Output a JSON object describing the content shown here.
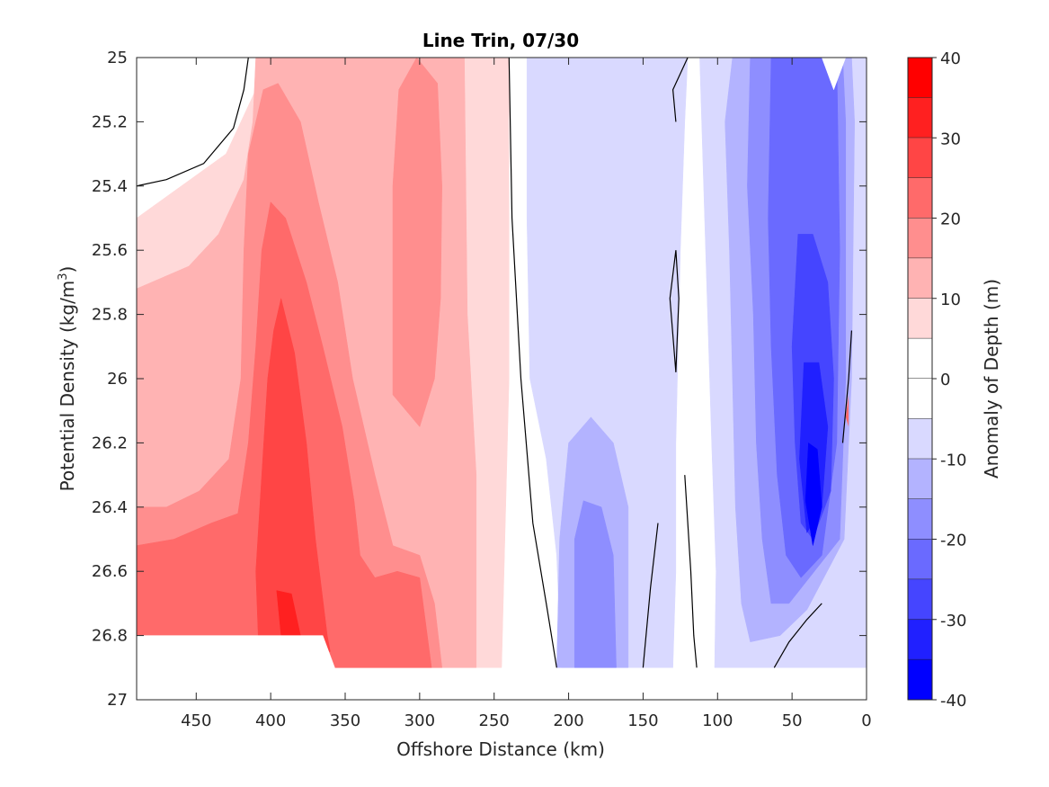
{
  "chart_data": {
    "type": "heatmap",
    "subtype": "filled-contour",
    "title": "Line Trin, 07/30",
    "xlabel": "Offshore Distance (km)",
    "ylabel_main": "Potential Density (kg/m",
    "ylabel_sup": "3",
    "ylabel_close": ")",
    "xlim": [
      490,
      0
    ],
    "ylim": [
      25,
      27
    ],
    "x_ticks": [
      450,
      400,
      350,
      300,
      250,
      200,
      150,
      100,
      50,
      0
    ],
    "x_tick_labels": [
      "450",
      "400",
      "350",
      "300",
      "250",
      "200",
      "150",
      "100",
      "50",
      "0"
    ],
    "y_ticks": [
      25,
      25.2,
      25.4,
      25.6,
      25.8,
      26,
      26.2,
      26.4,
      26.6,
      26.8,
      27
    ],
    "y_tick_labels": [
      "25",
      "25.2",
      "25.4",
      "25.6",
      "25.8",
      "26",
      "26.2",
      "26.4",
      "26.6",
      "26.8",
      "27"
    ],
    "colorbar": {
      "label": "Anomaly of Depth (m)",
      "clim": [
        -40,
        40
      ],
      "ticks": [
        40,
        30,
        20,
        10,
        0,
        -10,
        -20,
        -30,
        -40
      ],
      "tick_labels": [
        "40",
        "30",
        "20",
        "10",
        "0",
        "-10",
        "-20",
        "-30",
        "-40"
      ],
      "levels": [
        {
          "from": 35,
          "to": 40,
          "color": "#ff0000"
        },
        {
          "from": 30,
          "to": 35,
          "color": "#ff2020"
        },
        {
          "from": 25,
          "to": 30,
          "color": "#ff4545"
        },
        {
          "from": 20,
          "to": 25,
          "color": "#ff6a6a"
        },
        {
          "from": 15,
          "to": 20,
          "color": "#ff8e8e"
        },
        {
          "from": 10,
          "to": 15,
          "color": "#ffb3b3"
        },
        {
          "from": 5,
          "to": 10,
          "color": "#ffd9d9"
        },
        {
          "from": 0,
          "to": 5,
          "color": "#ffffff"
        },
        {
          "from": -5,
          "to": 0,
          "color": "#ffffff"
        },
        {
          "from": -10,
          "to": -5,
          "color": "#d9d9ff"
        },
        {
          "from": -15,
          "to": -10,
          "color": "#b3b3ff"
        },
        {
          "from": -20,
          "to": -15,
          "color": "#8e8eff"
        },
        {
          "from": -25,
          "to": -20,
          "color": "#6a6aff"
        },
        {
          "from": -30,
          "to": -25,
          "color": "#4545ff"
        },
        {
          "from": -35,
          "to": -30,
          "color": "#2020ff"
        },
        {
          "from": -40,
          "to": -35,
          "color": "#0000ff"
        }
      ]
    },
    "regions": [
      {
        "level": 7.5,
        "color": "#ffd9d9",
        "pts": [
          [
            490,
            25.5
          ],
          [
            460,
            25.4
          ],
          [
            430,
            25.3
          ],
          [
            410,
            25.1
          ],
          [
            405,
            25.0
          ],
          [
            240,
            25.0
          ],
          [
            240,
            26.0
          ],
          [
            245,
            26.9
          ],
          [
            490,
            26.9
          ]
        ]
      },
      {
        "level": 12.5,
        "color": "#ffb3b3",
        "pts": [
          [
            490,
            25.72
          ],
          [
            455,
            25.65
          ],
          [
            435,
            25.55
          ],
          [
            418,
            25.38
          ],
          [
            412,
            25.2
          ],
          [
            410,
            25.0
          ],
          [
            270,
            25.0
          ],
          [
            268,
            25.8
          ],
          [
            262,
            26.3
          ],
          [
            262,
            26.9
          ],
          [
            490,
            26.9
          ]
        ]
      },
      {
        "level": 17.5,
        "color": "#ff8e8e",
        "pts": [
          [
            490,
            26.4
          ],
          [
            470,
            26.4
          ],
          [
            448,
            26.35
          ],
          [
            428,
            26.25
          ],
          [
            420,
            26.0
          ],
          [
            418,
            25.6
          ],
          [
            415,
            25.3
          ],
          [
            405,
            25.1
          ],
          [
            395,
            25.08
          ],
          [
            380,
            25.2
          ],
          [
            368,
            25.45
          ],
          [
            355,
            25.7
          ],
          [
            345,
            26.0
          ],
          [
            330,
            26.3
          ],
          [
            318,
            26.52
          ],
          [
            300,
            26.55
          ],
          [
            290,
            26.7
          ],
          [
            285,
            26.9
          ],
          [
            490,
            26.9
          ]
        ]
      },
      {
        "level": 17.5,
        "color": "#ff8e8e",
        "pts": [
          [
            318,
            26.05
          ],
          [
            318,
            25.4
          ],
          [
            314,
            25.1
          ],
          [
            302,
            25.0
          ],
          [
            288,
            25.08
          ],
          [
            285,
            25.4
          ],
          [
            286,
            25.75
          ],
          [
            290,
            26.0
          ],
          [
            300,
            26.15
          ]
        ]
      },
      {
        "level": 22.5,
        "color": "#ff6a6a",
        "pts": [
          [
            490,
            26.52
          ],
          [
            465,
            26.5
          ],
          [
            440,
            26.45
          ],
          [
            422,
            26.42
          ],
          [
            415,
            26.2
          ],
          [
            410,
            25.9
          ],
          [
            406,
            25.6
          ],
          [
            400,
            25.45
          ],
          [
            390,
            25.5
          ],
          [
            376,
            25.7
          ],
          [
            365,
            25.9
          ],
          [
            352,
            26.15
          ],
          [
            344,
            26.38
          ],
          [
            340,
            26.55
          ],
          [
            330,
            26.62
          ],
          [
            315,
            26.6
          ],
          [
            300,
            26.62
          ],
          [
            292,
            26.9
          ],
          [
            490,
            26.9
          ]
        ]
      },
      {
        "level": 27.5,
        "color": "#ff4545",
        "pts": [
          [
            408,
            26.85
          ],
          [
            410,
            26.6
          ],
          [
            406,
            26.3
          ],
          [
            402,
            26.0
          ],
          [
            398,
            25.85
          ],
          [
            393,
            25.75
          ],
          [
            384,
            25.92
          ],
          [
            376,
            26.2
          ],
          [
            370,
            26.5
          ],
          [
            362,
            26.8
          ],
          [
            360,
            26.85
          ]
        ]
      },
      {
        "level": 32.5,
        "color": "#ff2020",
        "pts": [
          [
            393,
            26.8
          ],
          [
            396,
            26.66
          ],
          [
            386,
            26.67
          ],
          [
            380,
            26.8
          ]
        ]
      },
      {
        "level": 0,
        "color": "#ffffff",
        "pts": [
          [
            490,
            26.8
          ],
          [
            365,
            26.8
          ],
          [
            357,
            26.9
          ],
          [
            357,
            27.0
          ],
          [
            490,
            27.0
          ]
        ]
      },
      {
        "level": -7.5,
        "color": "#d9d9ff",
        "pts": [
          [
            228,
            25.0
          ],
          [
            228,
            25.5
          ],
          [
            226,
            26.0
          ],
          [
            215,
            26.25
          ],
          [
            208,
            26.55
          ],
          [
            205,
            26.9
          ],
          [
            130,
            26.9
          ],
          [
            128,
            26.6
          ],
          [
            128,
            26.2
          ],
          [
            125,
            25.6
          ],
          [
            122,
            25.2
          ],
          [
            120,
            25.0
          ]
        ]
      },
      {
        "level": -7.5,
        "color": "#d9d9ff",
        "pts": [
          [
            122,
            25.0
          ],
          [
            112,
            25.0
          ],
          [
            108,
            25.6
          ],
          [
            104,
            26.2
          ],
          [
            101,
            26.6
          ],
          [
            102,
            26.9
          ],
          [
            0,
            26.9
          ],
          [
            0,
            25.0
          ]
        ]
      },
      {
        "level": -12.5,
        "color": "#b3b3ff",
        "pts": [
          [
            208,
            26.9
          ],
          [
            206,
            26.5
          ],
          [
            200,
            26.2
          ],
          [
            185,
            26.12
          ],
          [
            170,
            26.2
          ],
          [
            160,
            26.4
          ],
          [
            160,
            26.9
          ]
        ]
      },
      {
        "level": -12.5,
        "color": "#b3b3ff",
        "pts": [
          [
            90,
            25.0
          ],
          [
            95,
            25.2
          ],
          [
            92,
            25.6
          ],
          [
            90,
            26.0
          ],
          [
            88,
            26.4
          ],
          [
            84,
            26.7
          ],
          [
            78,
            26.82
          ],
          [
            58,
            26.8
          ],
          [
            40,
            26.72
          ],
          [
            15,
            26.5
          ],
          [
            10,
            26.0
          ],
          [
            8,
            25.2
          ],
          [
            10,
            25.0
          ]
        ]
      },
      {
        "level": -17.5,
        "color": "#8e8eff",
        "pts": [
          [
            196,
            26.9
          ],
          [
            196,
            26.5
          ],
          [
            190,
            26.38
          ],
          [
            178,
            26.4
          ],
          [
            170,
            26.55
          ],
          [
            168,
            26.9
          ]
        ]
      },
      {
        "level": -17.5,
        "color": "#8e8eff",
        "pts": [
          [
            78,
            25.0
          ],
          [
            80,
            25.4
          ],
          [
            76,
            25.8
          ],
          [
            74,
            26.2
          ],
          [
            70,
            26.5
          ],
          [
            64,
            26.7
          ],
          [
            52,
            26.7
          ],
          [
            35,
            26.6
          ],
          [
            18,
            26.5
          ],
          [
            14,
            26.0
          ],
          [
            14,
            25.2
          ],
          [
            16,
            25.0
          ]
        ]
      },
      {
        "level": -22.5,
        "color": "#6a6aff",
        "pts": [
          [
            64,
            25.0
          ],
          [
            66,
            25.5
          ],
          [
            64,
            25.9
          ],
          [
            60,
            26.3
          ],
          [
            54,
            26.55
          ],
          [
            44,
            26.62
          ],
          [
            30,
            26.55
          ],
          [
            20,
            26.2
          ],
          [
            18,
            25.6
          ],
          [
            20,
            25.0
          ]
        ]
      },
      {
        "level": -27.5,
        "color": "#4545ff",
        "pts": [
          [
            46,
            25.55
          ],
          [
            50,
            25.9
          ],
          [
            48,
            26.2
          ],
          [
            44,
            26.45
          ],
          [
            36,
            26.5
          ],
          [
            24,
            26.35
          ],
          [
            22,
            26.0
          ],
          [
            26,
            25.7
          ],
          [
            36,
            25.55
          ]
        ]
      },
      {
        "level": -32.5,
        "color": "#2020ff",
        "pts": [
          [
            42,
            25.95
          ],
          [
            45,
            26.25
          ],
          [
            40,
            26.48
          ],
          [
            30,
            26.4
          ],
          [
            26,
            26.15
          ],
          [
            32,
            25.95
          ]
        ]
      },
      {
        "level": -37.5,
        "color": "#0000ff",
        "pts": [
          [
            39,
            26.2
          ],
          [
            41,
            26.38
          ],
          [
            36,
            26.52
          ],
          [
            30,
            26.4
          ],
          [
            33,
            26.22
          ]
        ]
      },
      {
        "level": 0,
        "color": "#ffffff",
        "pts": [
          [
            30,
            25.0
          ],
          [
            22,
            25.1
          ],
          [
            14,
            25.0
          ]
        ]
      }
    ],
    "zero_contours": [
      [
        [
          490,
          25.4
        ],
        [
          470,
          25.38
        ],
        [
          445,
          25.33
        ],
        [
          425,
          25.22
        ],
        [
          418,
          25.1
        ],
        [
          415,
          25.0
        ]
      ],
      [
        [
          240,
          25.0
        ],
        [
          238,
          25.5
        ],
        [
          232,
          26.0
        ],
        [
          224,
          26.45
        ],
        [
          215,
          26.7
        ],
        [
          208,
          26.9
        ]
      ],
      [
        [
          120,
          25.0
        ],
        [
          130,
          25.1
        ],
        [
          128,
          25.2
        ]
      ],
      [
        [
          128,
          25.6
        ],
        [
          132,
          25.75
        ],
        [
          128,
          25.98
        ],
        [
          126,
          25.75
        ],
        [
          128,
          25.6
        ]
      ],
      [
        [
          122,
          26.3
        ],
        [
          118,
          26.6
        ],
        [
          116,
          26.8
        ],
        [
          114,
          26.9
        ]
      ],
      [
        [
          150,
          26.9
        ],
        [
          145,
          26.65
        ],
        [
          140,
          26.45
        ]
      ],
      [
        [
          62,
          26.9
        ],
        [
          52,
          26.82
        ],
        [
          40,
          26.75
        ],
        [
          30,
          26.7
        ]
      ],
      [
        [
          10,
          25.85
        ],
        [
          12,
          26.0
        ],
        [
          16,
          26.2
        ]
      ]
    ],
    "spike_anomaly": {
      "level": 22.5,
      "color": "#ff6a6a",
      "pts": [
        [
          12,
          26.05
        ],
        [
          14,
          26.12
        ],
        [
          12,
          26.15
        ]
      ]
    }
  }
}
